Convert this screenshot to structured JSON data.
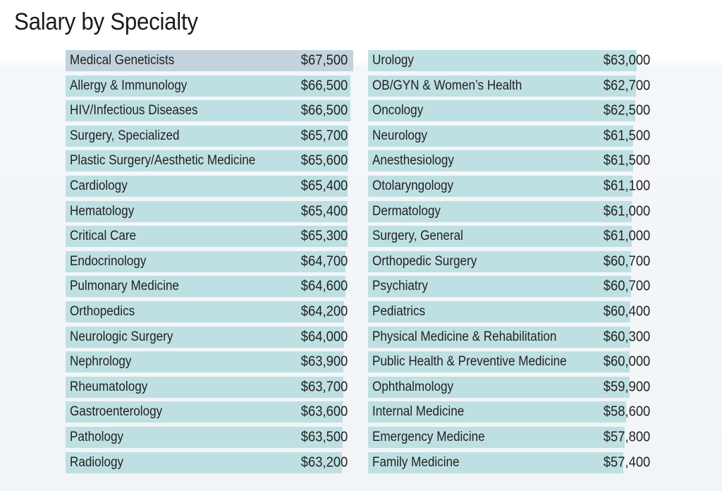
{
  "chart_data": {
    "type": "bar",
    "orientation": "horizontal",
    "title": "Salary by Specialty",
    "xlabel": "",
    "ylabel": "",
    "colors": {
      "bar": "#bfe0e2",
      "bar_top": "#c2d3dd"
    },
    "columns": [
      {
        "categories": [
          "Medical Geneticists",
          "Allergy & Immunology",
          "HIV/Infectious Diseases",
          "Surgery, Specialized",
          "Plastic Surgery/Aesthetic Medicine",
          "Cardiology",
          "Hematology",
          "Critical Care",
          "Endocrinology",
          "Pulmonary Medicine",
          "Orthopedics",
          "Neurologic Surgery",
          "Nephrology",
          "Rheumatology",
          "Gastroenterology",
          "Pathology",
          "Radiology"
        ],
        "values": [
          67500,
          66500,
          66500,
          65700,
          65600,
          65400,
          65400,
          65300,
          64700,
          64600,
          64200,
          64000,
          63900,
          63700,
          63600,
          63500,
          63200
        ],
        "labels": [
          "$67,500",
          "$66,500",
          "$66,500",
          "$65,700",
          "$65,600",
          "$65,400",
          "$65,400",
          "$65,300",
          "$64,700",
          "$64,600",
          "$64,200",
          "$64,000",
          "$63,900",
          "$63,700",
          "$63,600",
          "$63,500",
          "$63,200"
        ]
      },
      {
        "categories": [
          "Urology",
          "OB/GYN & Women’s Health",
          "Oncology",
          "Neurology",
          "Anesthesiology",
          "Otolaryngology",
          "Dermatology",
          "Surgery, General",
          "Orthopedic Surgery",
          "Psychiatry",
          "Pediatrics",
          "Physical Medicine & Rehabilitation",
          "Public Health & Preventive Medicine",
          "Ophthalmology",
          "Internal Medicine",
          "Emergency Medicine",
          "Family Medicine"
        ],
        "values": [
          63000,
          62700,
          62500,
          61500,
          61500,
          61100,
          61000,
          61000,
          60700,
          60700,
          60400,
          60300,
          60000,
          59900,
          58600,
          57800,
          57400
        ],
        "labels": [
          "$63,000",
          "$62,700",
          "$62,500",
          "$61,500",
          "$61,500",
          "$61,100",
          "$61,000",
          "$61,000",
          "$60,700",
          "$60,700",
          "$60,400",
          "$60,300",
          "$60,000",
          "$59,900",
          "$58,600",
          "$57,800",
          "$57,400"
        ]
      }
    ]
  }
}
